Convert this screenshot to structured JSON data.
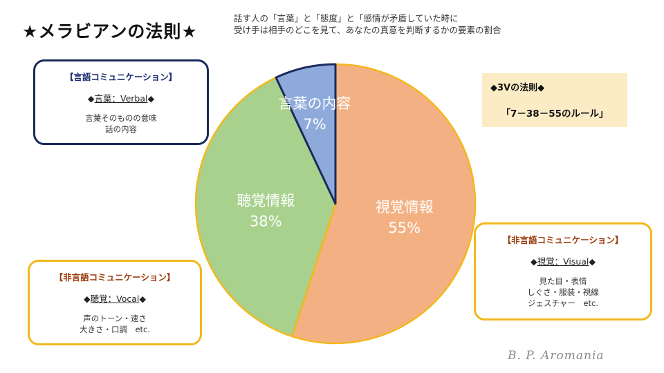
{
  "page": {
    "title": "★メラビアンの法則★",
    "subtitle_line1": "話す人の「言葉」と「態度」と「感情が矛盾していた時に",
    "subtitle_line2": "受け手は相手のどこを見て、あなたの真意を判断するかの要素の割合",
    "watermark": "B. P. Aromania"
  },
  "boxes": {
    "verbal": {
      "heading": "【言語コミュニケーション】",
      "diamond": "◆",
      "key": "言葉：Verbal",
      "desc1": "言葉そのものの意味",
      "desc2": "話の内容"
    },
    "vocal": {
      "heading": "【非言語コミュニケーション】",
      "diamond": "◆",
      "key": "聴覚：Vocal",
      "desc1": "声のトーン・速さ",
      "desc2": "大きさ・口調　etc."
    },
    "visual": {
      "heading": "【非言語コミュニケーション】",
      "diamond": "◆",
      "key": "視覚：Visual",
      "desc1": "見た目・表情",
      "desc2": "しぐさ・服装・視線",
      "desc3": "ジェスチャー　etc."
    }
  },
  "rule": {
    "line1": "◆3Vの法則◆",
    "line2": "「7－38－55のルール」"
  },
  "colors": {
    "visual": "#f3b183",
    "vocal": "#a9d18e",
    "verbal": "#8eaadb",
    "outline": "#f2b81c",
    "verbal_outline": "#1a2a5c"
  },
  "chart_data": {
    "type": "pie",
    "title": "",
    "start": "12 o'clock, clockwise",
    "slices": [
      {
        "label": "視覚情報",
        "value": 55,
        "display": "55%"
      },
      {
        "label": "聴覚情報",
        "value": 38,
        "display": "38%"
      },
      {
        "label": "言葉の内容",
        "value": 7,
        "display": "7%"
      }
    ]
  }
}
